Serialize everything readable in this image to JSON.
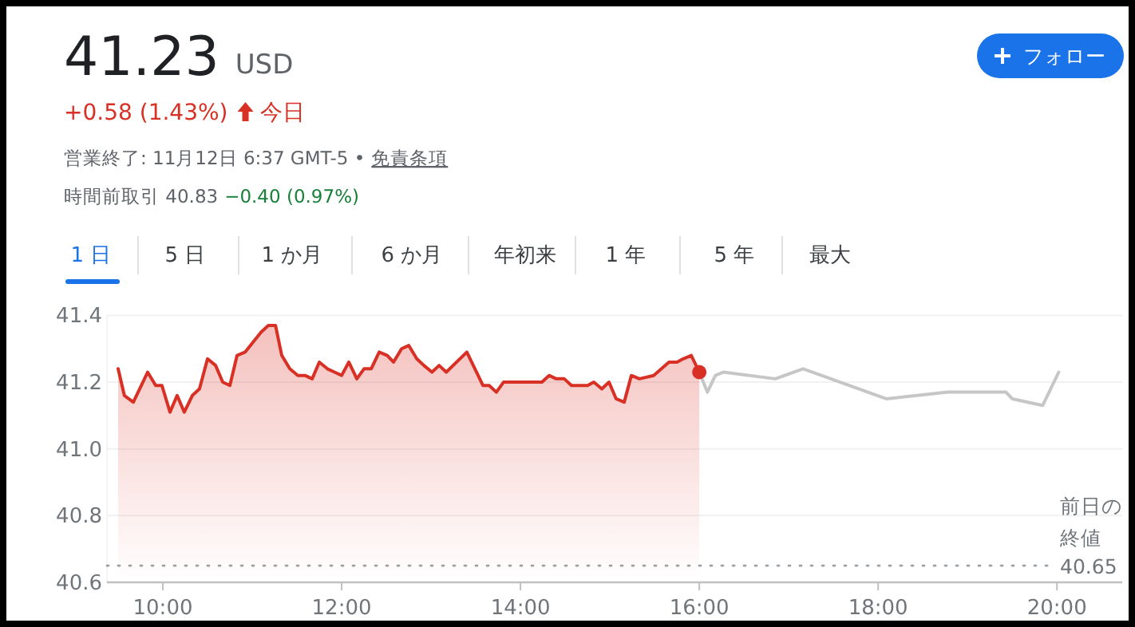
{
  "chart_data": {
    "type": "area",
    "title": "41.23",
    "subtitle": "USD",
    "annotations": [
      "+0.58 (1.43%)",
      "今日",
      "営業終了: 11月12日 6:37 GMT-5 •",
      "免責条項",
      "時間前取引 40.83",
      "−0.40 (0.97%)",
      "1 日",
      "5 日",
      "1 か月",
      "6 か月",
      "年初来",
      "1 年",
      "5 年",
      "最大",
      "フォロー",
      "40.65"
    ],
    "series": [
      {
        "type": "area",
        "color": "#d93025",
        "x": [
          9.5,
          9.57,
          9.67,
          9.76,
          9.83,
          9.92,
          9.99,
          10.08,
          10.16,
          10.24,
          10.33,
          10.41,
          10.5,
          10.59,
          10.67,
          10.75,
          10.83,
          10.92,
          11.01,
          11.1,
          11.18,
          11.26,
          11.33,
          11.42,
          11.51,
          11.59,
          11.67,
          11.75,
          11.84,
          11.92,
          12.0,
          12.08,
          12.17,
          12.25,
          12.33,
          12.42,
          12.51,
          12.58,
          12.67,
          12.75,
          12.84,
          12.92,
          13.01,
          13.09,
          13.17,
          13.4,
          13.58,
          13.65,
          13.73,
          13.81,
          14.24,
          14.32,
          14.4,
          14.49,
          14.57,
          14.75,
          14.82,
          14.91,
          14.99,
          15.07,
          15.16,
          15.24,
          15.33,
          15.49,
          15.66,
          15.75,
          15.82,
          15.91,
          16.0
        ],
        "values": [
          41.24,
          41.16,
          41.14,
          41.19,
          41.23,
          41.19,
          41.19,
          41.11,
          41.16,
          41.11,
          41.16,
          41.18,
          41.27,
          41.25,
          41.2,
          41.19,
          41.28,
          41.29,
          41.32,
          41.35,
          41.37,
          41.37,
          41.28,
          41.24,
          41.22,
          41.22,
          41.21,
          41.26,
          41.24,
          41.23,
          41.22,
          41.26,
          41.21,
          41.24,
          41.24,
          41.29,
          41.28,
          41.26,
          41.3,
          41.31,
          41.27,
          41.25,
          41.23,
          41.25,
          41.23,
          41.29,
          41.19,
          41.19,
          41.17,
          41.2,
          41.2,
          41.22,
          41.21,
          41.21,
          41.19,
          41.19,
          41.2,
          41.18,
          41.2,
          41.15,
          41.14,
          41.22,
          41.21,
          41.22,
          41.26,
          41.26,
          41.27,
          41.28,
          41.23
        ]
      },
      {
        "type": "line",
        "color": "#c6c6c6",
        "x": [
          16.0,
          16.09,
          16.18,
          16.27,
          16.85,
          17.16,
          18.09,
          18.78,
          19.43,
          19.5,
          19.84,
          20.02
        ],
        "values": [
          41.23,
          41.17,
          41.22,
          41.23,
          41.21,
          41.24,
          41.15,
          41.17,
          41.17,
          41.15,
          41.13,
          41.23
        ]
      },
      {
        "type": "scatter",
        "color": "#d93025",
        "x": [
          16.0
        ],
        "values": [
          41.23
        ]
      }
    ],
    "xlim": [
      9.375,
      20.73
    ],
    "ylim": [
      40.6,
      41.4
    ],
    "xticks": [
      {
        "value": 10,
        "label": "10:00"
      },
      {
        "value": 12,
        "label": "12:00"
      },
      {
        "value": 14,
        "label": "14:00"
      },
      {
        "value": 16,
        "label": "16:00"
      },
      {
        "value": 18,
        "label": "18:00"
      },
      {
        "value": 20,
        "label": "20:00"
      }
    ],
    "yticks": [
      {
        "value": 40.6,
        "label": "40.6"
      },
      {
        "value": 40.8,
        "label": "40.8"
      },
      {
        "value": 41,
        "label": "41.0"
      },
      {
        "value": 41.2,
        "label": "41.2"
      },
      {
        "value": 41.4,
        "label": "41.4"
      }
    ],
    "ref_lines": [
      {
        "axis": "y",
        "value": 40.65,
        "label": "前日の終値",
        "line_style": "dotted",
        "color": "#9aa0a6"
      }
    ],
    "grid": "y"
  }
}
